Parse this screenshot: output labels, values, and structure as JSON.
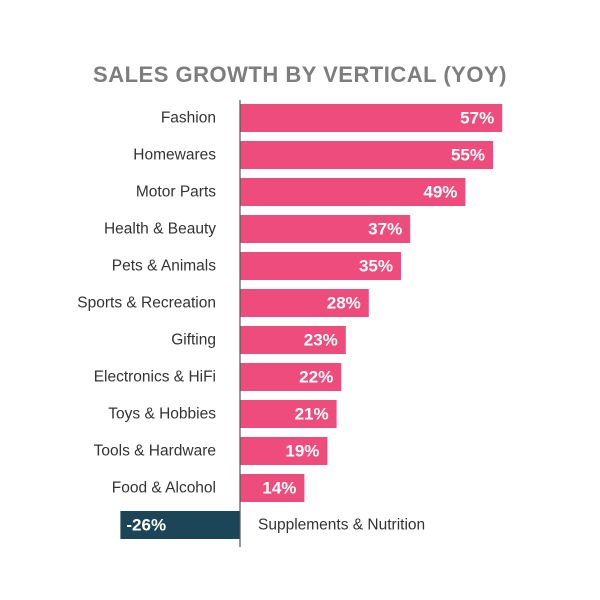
{
  "chart_data": {
    "type": "bar",
    "orientation": "horizontal",
    "title": "SALES GROWTH BY VERTICAL (YOY)",
    "xlabel": "",
    "ylabel": "",
    "categories": [
      "Fashion",
      "Homewares",
      "Motor Parts",
      "Health & Beauty",
      "Pets & Animals",
      "Sports & Recreation",
      "Gifting",
      "Electronics & HiFi",
      "Toys & Hobbies",
      "Tools & Hardware",
      "Food & Alcohol",
      "Supplements & Nutrition"
    ],
    "values": [
      57,
      55,
      49,
      37,
      35,
      28,
      23,
      22,
      21,
      19,
      14,
      -26
    ],
    "value_labels": [
      "57%",
      "55%",
      "49%",
      "37%",
      "35%",
      "28%",
      "23%",
      "22%",
      "21%",
      "19%",
      "14%",
      "-26%"
    ],
    "unit": "%",
    "xlim": [
      -26,
      57
    ],
    "grid": false,
    "legend": "none",
    "colors": {
      "positive": "#ee4c7c",
      "negative": "#1c4557",
      "axis": "#555555",
      "title": "#7d7d7d",
      "label": "#333333"
    }
  }
}
